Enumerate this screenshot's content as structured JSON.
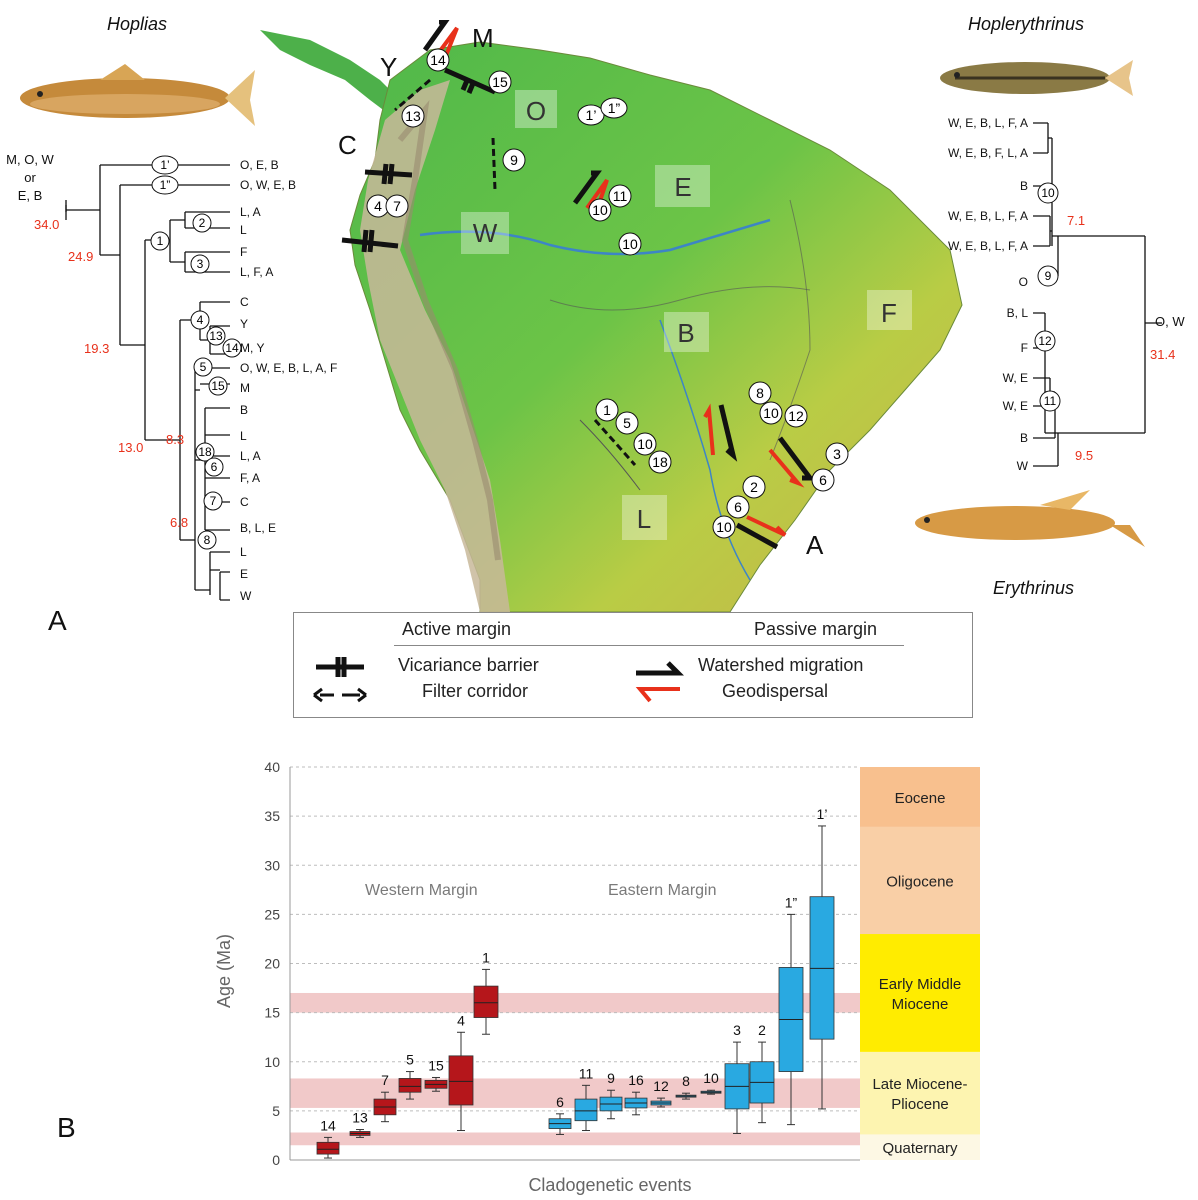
{
  "panel_a": {
    "label": "A",
    "hoplias": {
      "title": "Hoplias",
      "root_areas": [
        "M, O, W",
        "or",
        "E, B"
      ],
      "tips": [
        "O, E, B",
        "O, W, E, B",
        "L, A",
        "L",
        "F",
        "L, F, A",
        "C",
        "Y",
        "M, Y",
        "O, W, E, B, L, A, F",
        "M",
        "B",
        "L",
        "L, A",
        "F, A",
        "C",
        "B, L, E",
        "L",
        "E",
        "W"
      ],
      "ages": [
        "34.0",
        "24.9",
        "19.3",
        "13.0",
        "8.3",
        "6.8"
      ],
      "nodes": [
        "1’",
        "1”",
        "2",
        "1",
        "3",
        "4",
        "13",
        "14",
        "5",
        "15",
        "18",
        "6",
        "7",
        "8"
      ]
    },
    "hoplerythrinus": {
      "title": "Hoplerythrinus",
      "root_areas": "O, W",
      "tips": [
        "W, E, B, L, F, A",
        "W, E, B, F, L, A",
        "B",
        "W, E, B, L, F, A",
        "W, E, B, L, F, A",
        "O",
        "B, L",
        "F",
        "W, E",
        "W, E",
        "B",
        "W"
      ],
      "ages": [
        "7.1",
        "31.4",
        "9.5"
      ],
      "nodes": [
        "10",
        "9",
        "12",
        "11"
      ]
    },
    "erythrinus": {
      "title": "Erythrinus"
    },
    "map": {
      "regions": [
        "O",
        "E",
        "W",
        "B",
        "F",
        "L"
      ],
      "margin_letters": [
        "M",
        "Y",
        "C",
        "A"
      ],
      "event_labels": [
        "14",
        "15",
        "13",
        "9",
        "1’",
        "1”",
        "4",
        "7",
        "11",
        "10",
        "10",
        "8",
        "10",
        "12",
        "1",
        "5",
        "10",
        "18",
        "3",
        "6",
        "2",
        "6",
        "10"
      ]
    },
    "legend": {
      "active_margin": "Active margin",
      "passive_margin": "Passive margin",
      "vicariance": "Vicariance barrier",
      "filter": "Filter corridor",
      "watershed": "Watershed migration",
      "geodispersal": "Geodispersal"
    }
  },
  "panel_b": {
    "label": "B",
    "western_label": "Western Margin",
    "eastern_label": "Eastern Margin",
    "epochs": [
      {
        "name": "Eocene",
        "from": 33.9,
        "to": 40,
        "color": "#f8c08e"
      },
      {
        "name": "Oligocene",
        "from": 23,
        "to": 33.9,
        "color": "#f9cfa6"
      },
      {
        "name": "Early Middle Miocene",
        "from": 11,
        "to": 23,
        "color": "#ffec00"
      },
      {
        "name": "Late Miocene-Pliocene",
        "from": 2.6,
        "to": 11,
        "color": "#fdf4b0"
      },
      {
        "name": "Quaternary",
        "from": 0,
        "to": 2.6,
        "color": "#fdf8e4"
      }
    ],
    "bands": [
      [
        1.5,
        2.8
      ],
      [
        5.3,
        8.3
      ],
      [
        15,
        17
      ]
    ]
  },
  "chart_data": {
    "type": "boxplot",
    "title": "",
    "xlabel": "Cladogenetic events",
    "ylabel": "Age (Ma)",
    "ylim": [
      0,
      40
    ],
    "yticks": [
      0,
      5,
      10,
      15,
      20,
      25,
      30,
      35,
      40
    ],
    "grid": true,
    "series": [
      {
        "name": "Western Margin",
        "color": "#b5161b",
        "boxes": [
          {
            "label": "14",
            "min": 0.2,
            "q1": 0.6,
            "median": 1.1,
            "q3": 1.8,
            "max": 2.3
          },
          {
            "label": "13",
            "min": 2.3,
            "q1": 2.5,
            "median": 2.7,
            "q3": 2.9,
            "max": 3.1
          },
          {
            "label": "7",
            "min": 3.9,
            "q1": 4.6,
            "median": 5.4,
            "q3": 6.2,
            "max": 6.9
          },
          {
            "label": "5",
            "min": 6.2,
            "q1": 6.9,
            "median": 7.5,
            "q3": 8.3,
            "max": 9.0
          },
          {
            "label": "15",
            "min": 7.0,
            "q1": 7.3,
            "median": 7.7,
            "q3": 8.1,
            "max": 8.4
          },
          {
            "label": "4",
            "min": 3.0,
            "q1": 5.6,
            "median": 8.0,
            "q3": 10.6,
            "max": 13.0
          },
          {
            "label": "1",
            "min": 12.8,
            "q1": 14.5,
            "median": 16.0,
            "q3": 17.7,
            "max": 19.4
          }
        ]
      },
      {
        "name": "Eastern Margin",
        "color": "#29a9e1",
        "boxes": [
          {
            "label": "6",
            "min": 2.6,
            "q1": 3.2,
            "median": 3.7,
            "q3": 4.2,
            "max": 4.7
          },
          {
            "label": "11",
            "min": 3.0,
            "q1": 4.0,
            "median": 5.0,
            "q3": 6.2,
            "max": 7.6
          },
          {
            "label": "9",
            "min": 4.2,
            "q1": 5.0,
            "median": 5.7,
            "q3": 6.4,
            "max": 7.1
          },
          {
            "label": "16",
            "min": 4.6,
            "q1": 5.3,
            "median": 5.8,
            "q3": 6.3,
            "max": 6.9
          },
          {
            "label": "12",
            "min": 5.4,
            "q1": 5.6,
            "median": 5.8,
            "q3": 6.0,
            "max": 6.3
          },
          {
            "label": "8",
            "min": 6.2,
            "q1": 6.4,
            "median": 6.5,
            "q3": 6.6,
            "max": 6.8
          },
          {
            "label": "10",
            "min": 6.7,
            "q1": 6.8,
            "median": 6.9,
            "q3": 7.0,
            "max": 7.1
          },
          {
            "label": "3",
            "min": 2.7,
            "q1": 5.2,
            "median": 7.5,
            "q3": 9.8,
            "max": 12.0
          },
          {
            "label": "2",
            "min": 3.8,
            "q1": 5.8,
            "median": 7.9,
            "q3": 10.0,
            "max": 12.0
          },
          {
            "label": "1”",
            "min": 3.6,
            "q1": 9.0,
            "median": 14.3,
            "q3": 19.6,
            "max": 25.0
          },
          {
            "label": "1’",
            "min": 5.2,
            "q1": 12.3,
            "median": 19.5,
            "q3": 26.8,
            "max": 34.0
          }
        ]
      }
    ]
  }
}
